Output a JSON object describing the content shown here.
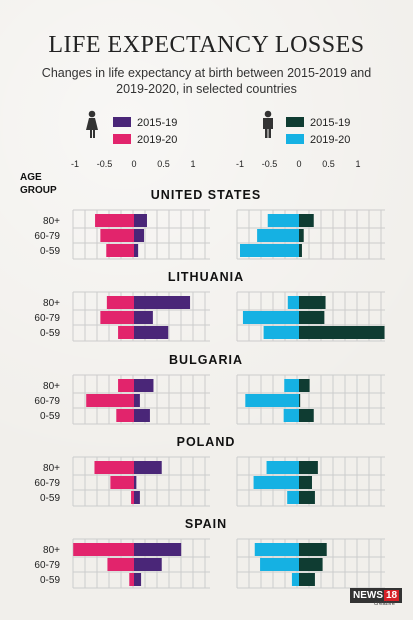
{
  "title": "LIFE EXPECTANCY LOSSES",
  "subtitle": "Changes in life expectancy at birth between 2015-2019 and 2019-2020, in selected countries",
  "age_group_header": [
    "AGE",
    "GROUP"
  ],
  "logo": {
    "text": "NEWS",
    "number": "18",
    "sub": "creative"
  },
  "colors": {
    "female_2015_19": "#4a2678",
    "female_2019_20": "#e2246c",
    "male_2015_19": "#0f3c32",
    "male_2019_20": "#15b1e3",
    "grid": "#cccccc"
  },
  "chart_data": {
    "type": "bar",
    "orientation": "horizontal",
    "panels": [
      {
        "legend_icon": "female-icon",
        "legend": [
          {
            "name": "2015-19",
            "color": "#4a2678"
          },
          {
            "name": "2019-20",
            "color": "#e2246c"
          }
        ],
        "ticks": [
          "-1",
          "-0.5",
          "0",
          "0.5",
          "1"
        ],
        "xlim": [
          -1,
          1
        ]
      },
      {
        "legend_icon": "male-icon",
        "legend": [
          {
            "name": "2015-19",
            "color": "#0f3c32"
          },
          {
            "name": "2019-20",
            "color": "#15b1e3"
          }
        ],
        "ticks": [
          "-1",
          "-0.5",
          "0",
          "0.5",
          "1"
        ],
        "xlim": [
          -1,
          1
        ]
      }
    ],
    "age_groups": [
      "80+",
      "60-79",
      "0-59"
    ],
    "countries": [
      {
        "name": "UNITED STATES",
        "female_2015_19": [
          0.22,
          0.17,
          0.07
        ],
        "female_2019_20": [
          -0.66,
          -0.57,
          -0.47
        ],
        "male_2015_19": [
          0.25,
          0.08,
          0.05
        ],
        "male_2019_20": [
          -0.53,
          -0.71,
          -1.0
        ]
      },
      {
        "name": "LITHUANIA",
        "female_2015_19": [
          0.95,
          0.32,
          0.58
        ],
        "female_2019_20": [
          -0.46,
          -0.57,
          -0.27
        ],
        "male_2015_19": [
          0.45,
          0.43,
          1.45
        ],
        "male_2019_20": [
          -0.19,
          -0.95,
          -0.6
        ]
      },
      {
        "name": "BULGARIA",
        "female_2015_19": [
          0.33,
          0.1,
          0.27
        ],
        "female_2019_20": [
          -0.27,
          -0.81,
          -0.3
        ],
        "male_2015_19": [
          0.18,
          0.02,
          0.25
        ],
        "male_2019_20": [
          -0.25,
          -0.91,
          -0.26
        ]
      },
      {
        "name": "POLAND",
        "female_2015_19": [
          0.47,
          0.04,
          0.1
        ],
        "female_2019_20": [
          -0.67,
          -0.4,
          -0.05
        ],
        "male_2015_19": [
          0.32,
          0.22,
          0.27
        ],
        "male_2019_20": [
          -0.55,
          -0.77,
          -0.2
        ]
      },
      {
        "name": "SPAIN",
        "female_2015_19": [
          0.8,
          0.47,
          0.12
        ],
        "female_2019_20": [
          -1.03,
          -0.45,
          -0.08
        ],
        "male_2015_19": [
          0.47,
          0.4,
          0.27
        ],
        "male_2019_20": [
          -0.75,
          -0.66,
          -0.12
        ]
      }
    ]
  }
}
